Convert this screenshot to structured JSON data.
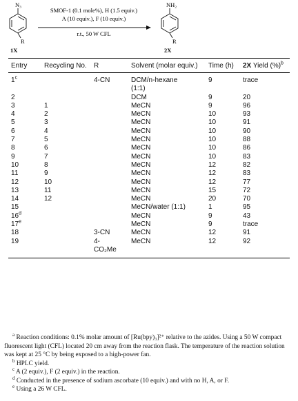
{
  "scheme": {
    "reactant_group": "N₃",
    "product_group": "NH₂",
    "substituent": "R",
    "reactant_label": "1X",
    "product_label": "2X",
    "conditions": [
      "SMOF-1 (0.1 mole%), H (1.5 equiv.)",
      "A (10 equiv.), F (10 equiv.)",
      "r.t., 50 W CFL"
    ]
  },
  "table": {
    "headers": {
      "entry": "Entry",
      "recycling": "Recycling No.",
      "R": "R",
      "solvent": "Solvent (molar equiv.)",
      "time": "Time (h)",
      "yield": {
        "compound": "2X",
        "text": "Yield (%)",
        "note": "b"
      }
    },
    "rows": [
      {
        "entry": "1",
        "note": "c",
        "R": "4-CN",
        "solvent": "DCM/n-hexane (1:1)",
        "time": "9",
        "yield": "trace"
      },
      {
        "entry": "2",
        "solvent": "DCM",
        "time": "9",
        "yield": "20"
      },
      {
        "entry": "3",
        "recycling": "1",
        "solvent": "MeCN",
        "time": "9",
        "yield": "96"
      },
      {
        "entry": "4",
        "recycling": "2",
        "solvent": "MeCN",
        "time": "10",
        "yield": "93"
      },
      {
        "entry": "5",
        "recycling": "3",
        "solvent": "MeCN",
        "time": "10",
        "yield": "91"
      },
      {
        "entry": "6",
        "recycling": "4",
        "solvent": "MeCN",
        "time": "10",
        "yield": "90"
      },
      {
        "entry": "7",
        "recycling": "5",
        "solvent": "MeCN",
        "time": "10",
        "yield": "88"
      },
      {
        "entry": "8",
        "recycling": "6",
        "solvent": "MeCN",
        "time": "10",
        "yield": "86"
      },
      {
        "entry": "9",
        "recycling": "7",
        "solvent": "MeCN",
        "time": "10",
        "yield": "83"
      },
      {
        "entry": "10",
        "recycling": "8",
        "solvent": "MeCN",
        "time": "12",
        "yield": "82"
      },
      {
        "entry": "11",
        "recycling": "9",
        "solvent": "MeCN",
        "time": "12",
        "yield": "83"
      },
      {
        "entry": "12",
        "recycling": "10",
        "solvent": "MeCN",
        "time": "12",
        "yield": "77"
      },
      {
        "entry": "13",
        "recycling": "11",
        "solvent": "MeCN",
        "time": "15",
        "yield": "72"
      },
      {
        "entry": "14",
        "recycling": "12",
        "solvent": "MeCN",
        "time": "20",
        "yield": "70"
      },
      {
        "entry": "15",
        "solvent": "MeCN/water (1:1)",
        "time": "1",
        "yield": "95"
      },
      {
        "entry": "16",
        "note": "d",
        "solvent": "MeCN",
        "time": "9",
        "yield": "43"
      },
      {
        "entry": "17",
        "note": "e",
        "solvent": "MeCN",
        "time": "9",
        "yield": "trace"
      },
      {
        "entry": "18",
        "R": "3-CN",
        "solvent": "MeCN",
        "time": "12",
        "yield": "91"
      },
      {
        "entry": "19",
        "R": "4-CO₂Me",
        "solvent": "MeCN",
        "time": "12",
        "yield": "92"
      }
    ]
  },
  "footnotes": [
    {
      "mark": "a",
      "text": "Reaction conditions: 0.1% molar amount of [Ru(bpy)₃]²⁺ relative to the azides. Using a 50 W compact fluorescent light (CFL) located 20 cm away from the reaction flask. The temperature of the reaction solution was kept at 25 °C by being exposed to a high-power fan."
    },
    {
      "mark": "b",
      "text": "HPLC yield."
    },
    {
      "mark": "c",
      "text": "A (2 equiv.), F (2 equiv.) in the reaction."
    },
    {
      "mark": "d",
      "text": "Conducted in the presence of sodium ascorbate (10 equiv.) and with no H, A, or F."
    },
    {
      "mark": "e",
      "text": "Using a 26 W CFL."
    }
  ]
}
